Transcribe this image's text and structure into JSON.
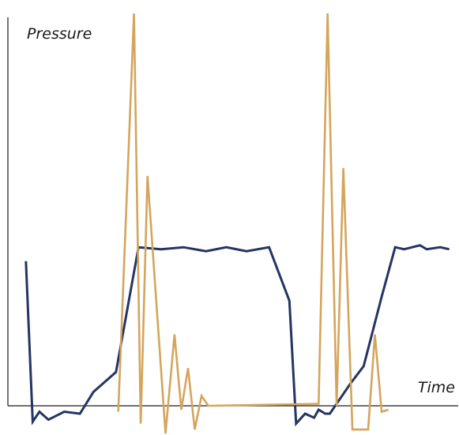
{
  "chart_data": {
    "type": "line",
    "title": "",
    "xlabel": "Time",
    "ylabel": "Pressure",
    "grid": false,
    "legend": "none",
    "xlim": [
      0,
      100
    ],
    "ylim": [
      0,
      100
    ],
    "series": [
      {
        "color": "#243562",
        "x": [
          4,
          5.5,
          7,
          9,
          12.5,
          16,
          19,
          24,
          29,
          34,
          39,
          44,
          48.5,
          53,
          58,
          62.5,
          64,
          66,
          68,
          69,
          70.5,
          71.5,
          76,
          79,
          83,
          86,
          88,
          91.5,
          93,
          96,
          98
        ],
        "y": [
          36.5,
          -4,
          -1.5,
          -3.5,
          -1.5,
          -2,
          3.5,
          8.5,
          40,
          39.5,
          40,
          39,
          40,
          39,
          40,
          26.5,
          -4.5,
          -2,
          -3,
          -1,
          -2,
          -2,
          5.5,
          10,
          27.5,
          40,
          39.5,
          40.5,
          39.5,
          40,
          39.5
        ]
      },
      {
        "color": "#d4a55c",
        "x": [
          24.5,
          28,
          29.5,
          31,
          35,
          37,
          38.5,
          40,
          41.5,
          43,
          44.5,
          69,
          71,
          73,
          74.5,
          76.5,
          80,
          81.5,
          83,
          84.5
        ],
        "y": [
          -1.5,
          99,
          -4.5,
          58,
          -7,
          18,
          -1,
          9.5,
          -6,
          2.5,
          0,
          0.5,
          99,
          0,
          60,
          -6,
          -6,
          18,
          -1.5,
          -1
        ]
      }
    ]
  }
}
